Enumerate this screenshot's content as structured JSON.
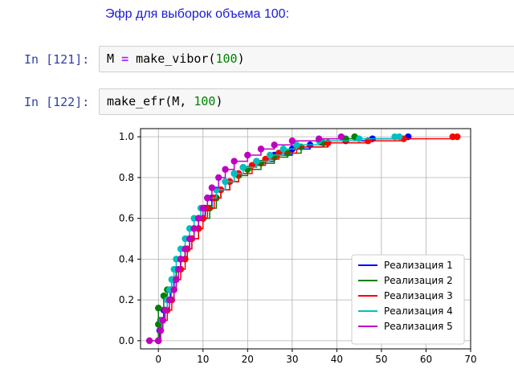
{
  "markdown": {
    "text": "Эфр для выборок объема 100:"
  },
  "cells": [
    {
      "prompt": "In [121]:",
      "code": {
        "var": "M",
        "op": "=",
        "func": "make_vibor(",
        "arg": "100",
        "close": ")"
      }
    },
    {
      "prompt": "In [122]:",
      "code": {
        "func": "make_efr(M, ",
        "arg": "100",
        "close": ")"
      }
    }
  ],
  "chart_data": {
    "type": "line",
    "xlim": [
      -4,
      70
    ],
    "ylim": [
      -0.04,
      1.04
    ],
    "x_ticks": [
      "0",
      "10",
      "20",
      "30",
      "40",
      "50",
      "60",
      "70"
    ],
    "y_ticks": [
      "0.0",
      "0.2",
      "0.4",
      "0.6",
      "0.8",
      "1.0"
    ],
    "grid": true,
    "legend_position": "lower-right",
    "series": [
      {
        "name": "Реализация 1",
        "color": "#0000ff",
        "points": [
          [
            0,
            0
          ],
          [
            0.3,
            0.05
          ],
          [
            0.5,
            0.1
          ],
          [
            1.2,
            0.15
          ],
          [
            2,
            0.2
          ],
          [
            2.8,
            0.25
          ],
          [
            3.5,
            0.3
          ],
          [
            4,
            0.35
          ],
          [
            5,
            0.4
          ],
          [
            6,
            0.45
          ],
          [
            7,
            0.5
          ],
          [
            8,
            0.55
          ],
          [
            9,
            0.6
          ],
          [
            10.5,
            0.65
          ],
          [
            12,
            0.7
          ],
          [
            13,
            0.74
          ],
          [
            15,
            0.78
          ],
          [
            17,
            0.82
          ],
          [
            19,
            0.85
          ],
          [
            22,
            0.88
          ],
          [
            26,
            0.91
          ],
          [
            30,
            0.94
          ],
          [
            34,
            0.96
          ],
          [
            38,
            0.97
          ],
          [
            42,
            0.98
          ],
          [
            48,
            0.99
          ],
          [
            56,
            1.0
          ]
        ]
      },
      {
        "name": "Реализация 2",
        "color": "#008000",
        "points": [
          [
            0,
            0
          ],
          [
            0,
            0.08
          ],
          [
            0,
            0.16
          ],
          [
            1.2,
            0.22
          ],
          [
            2,
            0.25
          ],
          [
            3,
            0.3
          ],
          [
            4,
            0.35
          ],
          [
            5,
            0.4
          ],
          [
            6,
            0.45
          ],
          [
            7.5,
            0.5
          ],
          [
            9,
            0.55
          ],
          [
            10,
            0.6
          ],
          [
            11.5,
            0.65
          ],
          [
            13,
            0.7
          ],
          [
            14,
            0.74
          ],
          [
            16,
            0.78
          ],
          [
            18,
            0.81
          ],
          [
            20,
            0.84
          ],
          [
            23,
            0.87
          ],
          [
            26,
            0.9
          ],
          [
            29,
            0.92
          ],
          [
            32,
            0.95
          ],
          [
            37,
            0.97
          ],
          [
            42,
            0.99
          ],
          [
            44,
            1.0
          ]
        ]
      },
      {
        "name": "Реализация 3",
        "color": "#ff0000",
        "points": [
          [
            0,
            0
          ],
          [
            0.5,
            0.05
          ],
          [
            1,
            0.1
          ],
          [
            2,
            0.15
          ],
          [
            3,
            0.2
          ],
          [
            3.5,
            0.25
          ],
          [
            4,
            0.3
          ],
          [
            5,
            0.35
          ],
          [
            6,
            0.4
          ],
          [
            6.5,
            0.45
          ],
          [
            7.5,
            0.5
          ],
          [
            9,
            0.55
          ],
          [
            10,
            0.6
          ],
          [
            11,
            0.65
          ],
          [
            12.5,
            0.7
          ],
          [
            14,
            0.74
          ],
          [
            16,
            0.78
          ],
          [
            18,
            0.82
          ],
          [
            21,
            0.86
          ],
          [
            24,
            0.89
          ],
          [
            27,
            0.92
          ],
          [
            31,
            0.95
          ],
          [
            38,
            0.97
          ],
          [
            47,
            0.98
          ],
          [
            55,
            0.99
          ],
          [
            66,
            1.0
          ],
          [
            67,
            1.0
          ]
        ]
      },
      {
        "name": "Реализация 4",
        "color": "#00bfbf",
        "points": [
          [
            0,
            0
          ],
          [
            0.5,
            0.05
          ],
          [
            0.8,
            0.1
          ],
          [
            1.5,
            0.15
          ],
          [
            2,
            0.2
          ],
          [
            2.5,
            0.25
          ],
          [
            3,
            0.3
          ],
          [
            3.5,
            0.35
          ],
          [
            4,
            0.4
          ],
          [
            5,
            0.45
          ],
          [
            6,
            0.5
          ],
          [
            7,
            0.55
          ],
          [
            8,
            0.6
          ],
          [
            9.5,
            0.65
          ],
          [
            11,
            0.7
          ],
          [
            13,
            0.74
          ],
          [
            15,
            0.78
          ],
          [
            17,
            0.82
          ],
          [
            19,
            0.85
          ],
          [
            22,
            0.88
          ],
          [
            25,
            0.91
          ],
          [
            28,
            0.94
          ],
          [
            31,
            0.96
          ],
          [
            36,
            0.98
          ],
          [
            45,
            0.99
          ],
          [
            53,
            1.0
          ],
          [
            54,
            1.0
          ]
        ]
      },
      {
        "name": "Реализация 5",
        "color": "#bf00bf",
        "points": [
          [
            -2,
            0
          ],
          [
            0,
            0
          ],
          [
            0.5,
            0.05
          ],
          [
            1,
            0.1
          ],
          [
            1.5,
            0.15
          ],
          [
            2.5,
            0.2
          ],
          [
            3.5,
            0.25
          ],
          [
            4,
            0.3
          ],
          [
            4.5,
            0.35
          ],
          [
            5,
            0.4
          ],
          [
            6,
            0.45
          ],
          [
            7,
            0.5
          ],
          [
            8,
            0.55
          ],
          [
            9,
            0.6
          ],
          [
            10,
            0.65
          ],
          [
            11,
            0.7
          ],
          [
            12,
            0.75
          ],
          [
            13.5,
            0.8
          ],
          [
            15,
            0.84
          ],
          [
            17,
            0.88
          ],
          [
            20,
            0.91
          ],
          [
            23,
            0.94
          ],
          [
            26,
            0.96
          ],
          [
            30,
            0.98
          ],
          [
            36,
            0.99
          ],
          [
            41,
            1.0
          ]
        ]
      }
    ]
  }
}
